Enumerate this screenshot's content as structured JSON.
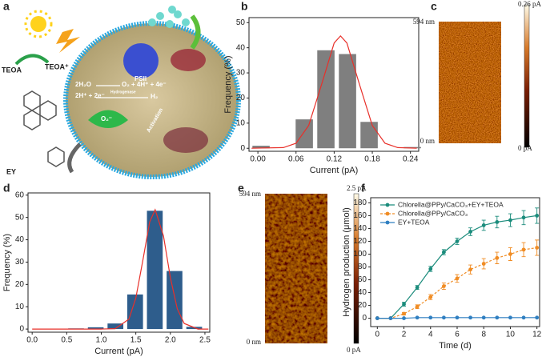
{
  "panel_labels": [
    "a",
    "b",
    "c",
    "d",
    "e",
    "f"
  ],
  "illustration": {
    "teoa": "TEOA",
    "teoa_plus": "TEOA⁺",
    "ey": "EY",
    "psii": "PSII",
    "water": "2H₂O",
    "oxidation": "O₂ + 4H⁺ + 4e⁻",
    "protons": "2H⁺ + 2e⁻",
    "hydrogen": "H₂",
    "enzyme": "Hydrogenase",
    "superoxide": "O₂⁻",
    "activation": "Activation"
  },
  "maps": [
    {
      "y_top": "594 nm",
      "y_bottom": "0 nm",
      "scale_top": "0.26 pA",
      "scale_bottom": "0 pA"
    },
    {
      "y_top": "594 nm",
      "y_bottom": "0 nm",
      "scale_top": "2.5 pA",
      "scale_bottom": "0 pA"
    }
  ],
  "chart_data": [
    {
      "type": "histogram",
      "xlabel": "Current (pA)",
      "ylabel": "Frequency (%)",
      "color": "#7f7f7f",
      "bins": [
        -0.012,
        0.022,
        0.056,
        0.09,
        0.124,
        0.158,
        0.192,
        0.226,
        0.26
      ],
      "values": [
        1,
        0,
        11.5,
        39,
        37.5,
        10.5,
        0,
        0.5
      ],
      "fit": {
        "color": "#e8302a",
        "x": [
          -0.01,
          0.04,
          0.06,
          0.08,
          0.1,
          0.12,
          0.13,
          0.14,
          0.16,
          0.18,
          0.2,
          0.22,
          0.25
        ],
        "values": [
          0,
          0.25,
          1.97,
          9.1,
          25.2,
          41.9,
          44.7,
          41.9,
          25.2,
          9.1,
          1.97,
          0.25,
          0
        ]
      },
      "xlim": [
        -0.014,
        0.253
      ],
      "ylim": [
        -1.2,
        52
      ],
      "xticks": [
        {
          "value": 0,
          "label": "0.00"
        },
        0.06,
        0.12,
        0.18,
        0.24
      ],
      "yticks": [
        0,
        10,
        20,
        30,
        40,
        50
      ]
    },
    {
      "type": "histogram",
      "xlabel": "Current (pA)",
      "ylabel": "Frequency (%)",
      "color": "#2e5d8c",
      "bins": [
        0.2075,
        0.4925,
        0.7775,
        1.0625,
        1.3475,
        1.6325,
        1.9175,
        2.2025,
        2.4875
      ],
      "values": [
        0.2,
        0.3,
        0.8,
        2.5,
        15.5,
        53,
        26,
        1
      ],
      "fit": {
        "color": "#e8302a",
        "x": [
          0,
          1.0,
          1.2,
          1.4,
          1.5,
          1.6,
          1.7,
          1.78,
          1.9,
          2.0,
          2.1,
          2.2,
          2.4,
          2.55
        ],
        "values": [
          0,
          0,
          0.16,
          4.4,
          13.8,
          30.5,
          47.9,
          53.5,
          41.7,
          23.1,
          9.1,
          2.5,
          0,
          0
        ]
      },
      "xlim": [
        -0.06,
        2.57
      ],
      "ylim": [
        -1.4,
        61
      ],
      "xticks": [
        {
          "value": 0,
          "label": "0.0"
        },
        0.5,
        {
          "value": 1,
          "label": "1.0"
        },
        1.5,
        {
          "value": 2,
          "label": "2.0"
        },
        2.5
      ],
      "yticks": [
        0,
        10,
        20,
        30,
        40,
        50,
        60
      ]
    },
    {
      "type": "line",
      "xlabel": "Time (d)",
      "ylabel": "Hydrogen production (μmol)",
      "x": [
        0,
        1,
        2,
        3,
        4,
        5,
        6,
        7,
        8,
        9,
        10,
        11,
        12
      ],
      "series": [
        {
          "name": "Chlorella@PPy/CaCO₃+EY+TEOA",
          "color": "#1b8c7c",
          "dash": false,
          "values": [
            0,
            0,
            22,
            48,
            77,
            103,
            120,
            135,
            145,
            150,
            153,
            157,
            160
          ],
          "errors": [
            0,
            0,
            3,
            3,
            4,
            4,
            5,
            6,
            8,
            9,
            10,
            11,
            12
          ]
        },
        {
          "name": "Chlorella@PPy/CaCO₃",
          "color": "#f08c24",
          "dash": true,
          "values": [
            0,
            0,
            7,
            18,
            33,
            50,
            62,
            76,
            85,
            94,
            100,
            107,
            110
          ],
          "errors": [
            0,
            0,
            2,
            3,
            4,
            5,
            6,
            7,
            8,
            9,
            10,
            11,
            12
          ]
        },
        {
          "name": "EY+TEOA",
          "color": "#2f7fc1",
          "dash": false,
          "values": [
            0,
            0,
            0,
            1,
            1,
            1,
            1,
            1,
            1,
            1,
            1,
            1,
            1
          ]
        }
      ],
      "xlim": [
        -0.5,
        12.2
      ],
      "ylim": [
        -13,
        188
      ],
      "xticks": [
        0,
        2,
        4,
        6,
        8,
        10,
        12
      ],
      "yticks": [
        0,
        20,
        40,
        60,
        80,
        100,
        120,
        140,
        160,
        180
      ],
      "legend": "upper left"
    }
  ]
}
